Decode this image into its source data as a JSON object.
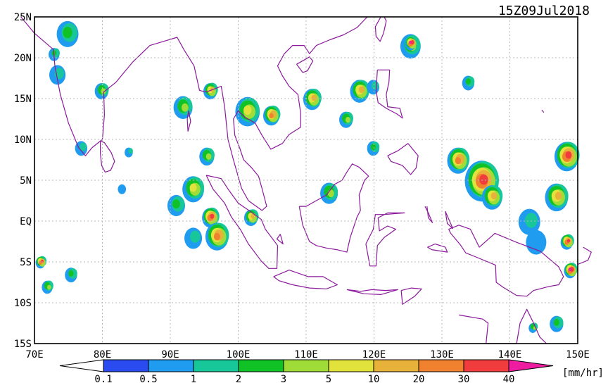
{
  "title": "15Z09Jul2018",
  "units": "[mm/hr]",
  "lat_labels": [
    "25N",
    "20N",
    "15N",
    "10N",
    "5N",
    "EQ",
    "5S",
    "10S",
    "15S"
  ],
  "lon_labels": [
    "70E",
    "80E",
    "90E",
    "100E",
    "110E",
    "120E",
    "130E",
    "140E",
    "150E"
  ],
  "colorbar": {
    "ticks": [
      "0.1",
      "0.5",
      "1",
      "2",
      "3",
      "5",
      "10",
      "20",
      "30",
      "40"
    ],
    "colors": [
      "#ffffff",
      "#2a4bf0",
      "#1f9bf0",
      "#17c79a",
      "#11c227",
      "#9fdc38",
      "#e2e23c",
      "#e8b23a",
      "#f0822f",
      "#f03c3c",
      "#ee1ca0"
    ]
  },
  "map": {
    "lon_range": [
      70,
      150
    ],
    "lat_range": [
      -15,
      25
    ],
    "coastline_color": "#8b1a9b"
  },
  "rain_cells": [
    {
      "lon": 75,
      "lat": 23,
      "r": 1.6,
      "level": 3
    },
    {
      "lon": 73.5,
      "lat": 18,
      "r": 1.2,
      "level": 2
    },
    {
      "lon": 80,
      "lat": 16,
      "r": 1.0,
      "level": 4
    },
    {
      "lon": 77,
      "lat": 9,
      "r": 0.9,
      "level": 2
    },
    {
      "lon": 73,
      "lat": 20.5,
      "r": 0.8,
      "level": 3
    },
    {
      "lon": 92,
      "lat": 14,
      "r": 1.4,
      "level": 4
    },
    {
      "lon": 96,
      "lat": 16,
      "r": 1.0,
      "level": 6
    },
    {
      "lon": 101.5,
      "lat": 13.5,
      "r": 1.8,
      "level": 5
    },
    {
      "lon": 105,
      "lat": 13,
      "r": 1.2,
      "level": 7
    },
    {
      "lon": 111,
      "lat": 15,
      "r": 1.3,
      "level": 6
    },
    {
      "lon": 116,
      "lat": 12.5,
      "r": 1.0,
      "level": 4
    },
    {
      "lon": 118,
      "lat": 16,
      "r": 1.4,
      "level": 6
    },
    {
      "lon": 120,
      "lat": 16.5,
      "r": 0.9,
      "level": 2
    },
    {
      "lon": 125.5,
      "lat": 21.5,
      "r": 1.5,
      "level": 4
    },
    {
      "lon": 125.5,
      "lat": 21.8,
      "r": 0.8,
      "level": 9
    },
    {
      "lon": 134,
      "lat": 17,
      "r": 0.9,
      "level": 3
    },
    {
      "lon": 132.5,
      "lat": 7.5,
      "r": 1.6,
      "level": 7
    },
    {
      "lon": 136,
      "lat": 5,
      "r": 2.5,
      "level": 8
    },
    {
      "lon": 137.5,
      "lat": 3,
      "r": 1.5,
      "level": 6
    },
    {
      "lon": 148.5,
      "lat": 8,
      "r": 1.8,
      "level": 8
    },
    {
      "lon": 147,
      "lat": 3,
      "r": 1.7,
      "level": 6
    },
    {
      "lon": 143,
      "lat": 0,
      "r": 1.6,
      "level": 2
    },
    {
      "lon": 144,
      "lat": -2.5,
      "r": 1.5,
      "level": 1
    },
    {
      "lon": 148.5,
      "lat": -2.5,
      "r": 0.9,
      "level": 8
    },
    {
      "lon": 149,
      "lat": -6,
      "r": 0.9,
      "level": 9
    },
    {
      "lon": 93.5,
      "lat": 4,
      "r": 1.6,
      "level": 5
    },
    {
      "lon": 91,
      "lat": 2,
      "r": 1.3,
      "level": 3
    },
    {
      "lon": 96,
      "lat": 0.5,
      "r": 1.2,
      "level": 8
    },
    {
      "lon": 97,
      "lat": -1.8,
      "r": 1.7,
      "level": 7
    },
    {
      "lon": 93.5,
      "lat": -2,
      "r": 1.3,
      "level": 2
    },
    {
      "lon": 102,
      "lat": 0.5,
      "r": 1.0,
      "level": 6
    },
    {
      "lon": 95.5,
      "lat": 8,
      "r": 1.1,
      "level": 4
    },
    {
      "lon": 113.5,
      "lat": 3.5,
      "r": 1.3,
      "level": 4
    },
    {
      "lon": 120,
      "lat": 9,
      "r": 0.9,
      "level": 3
    },
    {
      "lon": 72,
      "lat": -8,
      "r": 0.8,
      "level": 4
    },
    {
      "lon": 71,
      "lat": -5,
      "r": 0.7,
      "level": 8
    },
    {
      "lon": 75.5,
      "lat": -6.5,
      "r": 0.9,
      "level": 3
    },
    {
      "lon": 84,
      "lat": 8.5,
      "r": 0.6,
      "level": 2
    },
    {
      "lon": 83,
      "lat": 4,
      "r": 0.6,
      "level": 1
    },
    {
      "lon": 147,
      "lat": -12.5,
      "r": 1.0,
      "level": 3
    },
    {
      "lon": 143.5,
      "lat": -13,
      "r": 0.6,
      "level": 4
    }
  ]
}
